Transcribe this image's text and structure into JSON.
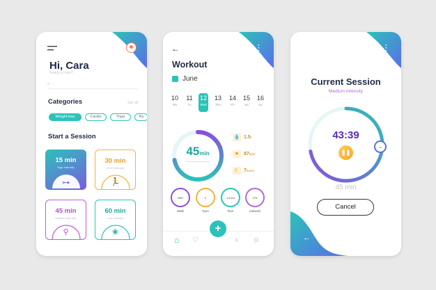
{
  "colors": {
    "accent": "#2bc3b8",
    "purple": "#8a4de0",
    "amber": "#f5b13c"
  },
  "home": {
    "greeting": "Hi, Cara",
    "greeting_sub": "Ready to train?",
    "search_icon": "search-icon",
    "categories_title": "Categories",
    "see_all": "See all",
    "chips": [
      "Weight loss",
      "Cardio",
      "Yoga",
      "Ru"
    ],
    "start_title": "Start a Session",
    "sessions": [
      {
        "time": "15 min",
        "label": "High Intensity",
        "icon": "dumbbell-icon"
      },
      {
        "time": "30 min",
        "label": "HIGH Intensity",
        "icon": "runner-icon"
      },
      {
        "time": "45 min",
        "label": "Medium Intensity",
        "icon": "bike-icon"
      },
      {
        "time": "60 min",
        "label": "Low Intensity",
        "icon": "lotus-icon"
      }
    ]
  },
  "workout": {
    "title": "Workout",
    "month": "June",
    "days": [
      {
        "n": "10",
        "w": "Mo"
      },
      {
        "n": "11",
        "w": "Tu"
      },
      {
        "n": "12",
        "w": "Wed"
      },
      {
        "n": "13",
        "w": "Thu"
      },
      {
        "n": "14",
        "w": "Fri"
      },
      {
        "n": "15",
        "w": "Sa"
      },
      {
        "n": "16",
        "w": "Su"
      }
    ],
    "selected_day": "12",
    "progress_value": "45",
    "progress_unit": "min",
    "progress_fraction": 0.72,
    "stats": [
      {
        "value": "1.5",
        "unit": "l",
        "icon": "water-drop-icon"
      },
      {
        "value": "87",
        "unit": "bpm",
        "icon": "heart-icon"
      },
      {
        "value": "7",
        "unit": "hours",
        "icon": "moon-icon"
      }
    ],
    "mini": [
      {
        "value": "2367",
        "label": "Walk",
        "color": "#8a4de0"
      },
      {
        "value": "0",
        "label": "Gym",
        "color": "#f5b13c"
      },
      {
        "value": "1.6 km",
        "label": "Run",
        "color": "#2bc3b8"
      },
      {
        "value": "275",
        "label": "Calories",
        "color": "#b06ad6"
      }
    ]
  },
  "session": {
    "title": "Current Session",
    "intensity": "Medium Intensity",
    "timer": "43:39",
    "duration": "45 min",
    "cancel": "Cancel",
    "progress_fraction": 0.72
  }
}
